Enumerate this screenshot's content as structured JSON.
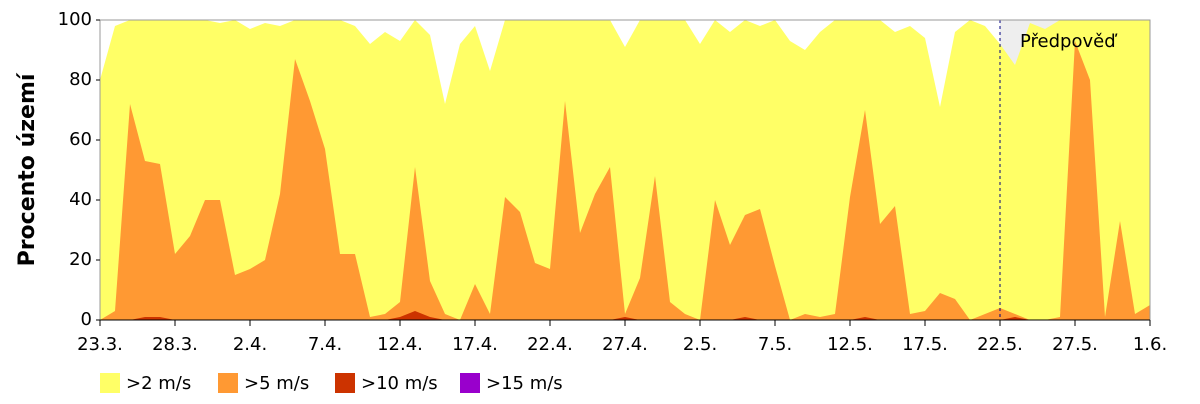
{
  "chart_data": {
    "type": "area",
    "y_label": "Procento území",
    "categories": [
      "23.3.",
      null,
      null,
      null,
      null,
      "28.3.",
      null,
      null,
      null,
      null,
      "2.4.",
      null,
      null,
      null,
      null,
      "7.4.",
      null,
      null,
      null,
      null,
      "12.4.",
      null,
      null,
      null,
      null,
      "17.4.",
      null,
      null,
      null,
      null,
      "22.4.",
      null,
      null,
      null,
      null,
      "27.4.",
      null,
      null,
      null,
      null,
      "2.5.",
      null,
      null,
      null,
      null,
      "7.5.",
      null,
      null,
      null,
      null,
      "12.5.",
      null,
      null,
      null,
      null,
      "17.5.",
      null,
      null,
      null,
      null,
      "22.5.",
      null,
      null,
      null,
      null,
      "27.5.",
      null,
      null,
      null,
      null,
      "1.6."
    ],
    "series": [
      {
        "name": ">2 m/s",
        "color": "#ffff66",
        "values": [
          80,
          98,
          100,
          100,
          100,
          100,
          100,
          100,
          99,
          100,
          97,
          99,
          98,
          100,
          100,
          100,
          100,
          98,
          92,
          96,
          93,
          100,
          95,
          72,
          92,
          98,
          83,
          100,
          100,
          100,
          100,
          100,
          100,
          100,
          100,
          91,
          100,
          100,
          100,
          100,
          92,
          100,
          96,
          100,
          98,
          100,
          93,
          90,
          96,
          100,
          100,
          100,
          100,
          96,
          98,
          94,
          71,
          96,
          100,
          98,
          92,
          85,
          99,
          97,
          100,
          100,
          100,
          100,
          100,
          100,
          100
        ]
      },
      {
        "name": ">5 m/s",
        "color": "#ff9933",
        "values": [
          0,
          3,
          72,
          53,
          52,
          22,
          28,
          40,
          40,
          15,
          17,
          20,
          42,
          87,
          73,
          57,
          22,
          22,
          1,
          2,
          6,
          51,
          13,
          2,
          0,
          12,
          2,
          41,
          36,
          19,
          17,
          73,
          29,
          42,
          51,
          2,
          14,
          48,
          6,
          2,
          0,
          40,
          25,
          35,
          37,
          18,
          0,
          2,
          1,
          2,
          41,
          70,
          32,
          38,
          2,
          3,
          9,
          7,
          0,
          2,
          4,
          2,
          0,
          0,
          1,
          93,
          80,
          1,
          33,
          2,
          5
        ]
      },
      {
        "name": ">10 m/s",
        "color": "#cc3300",
        "values": [
          0,
          0,
          0,
          1,
          1,
          0,
          0,
          0,
          0,
          0,
          0,
          0,
          0,
          0,
          0,
          0,
          0,
          0,
          0,
          0,
          1,
          3,
          1,
          0,
          0,
          0,
          0,
          0,
          0,
          0,
          0,
          0,
          0,
          0,
          0,
          1,
          0,
          0,
          0,
          0,
          0,
          0,
          0,
          1,
          0,
          0,
          0,
          0,
          0,
          0,
          0,
          1,
          0,
          0,
          0,
          0,
          0,
          0,
          0,
          0,
          0,
          1,
          0,
          0,
          0,
          0,
          0,
          0,
          0,
          0,
          0
        ]
      },
      {
        "name": ">15 m/s",
        "color": "#9900cc",
        "values": [
          0,
          0,
          0,
          0,
          0,
          0,
          0,
          0,
          0,
          0,
          0,
          0,
          0,
          0,
          0,
          0,
          0,
          0,
          0,
          0,
          0,
          0,
          0,
          0,
          0,
          0,
          0,
          0,
          0,
          0,
          0,
          0,
          0,
          0,
          0,
          0,
          0,
          0,
          0,
          0,
          0,
          0,
          0,
          0,
          0,
          0,
          0,
          0,
          0,
          0,
          0,
          0,
          0,
          0,
          0,
          0,
          0,
          0,
          0,
          0,
          0,
          0,
          0,
          0,
          0,
          0,
          0,
          0,
          0,
          0,
          0
        ]
      }
    ],
    "ylim": [
      0,
      100
    ],
    "yticks": [
      0,
      20,
      40,
      60,
      80,
      100
    ],
    "annotation": {
      "text": "Předpověď",
      "x": "22.5.",
      "background": "#eeeeee"
    },
    "legend": "bottom"
  }
}
